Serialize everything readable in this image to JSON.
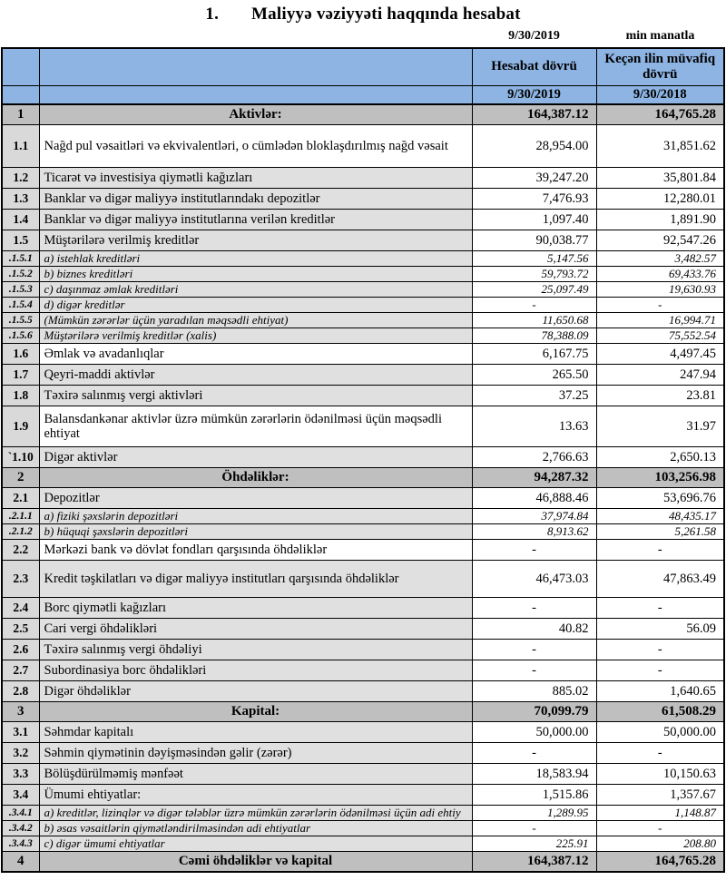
{
  "colors": {
    "header_blue": "#8DB4E2",
    "section_gray": "#BFBFBF",
    "no_col_gray": "#D9D9D9",
    "label_gray": "#E0E0E0"
  },
  "page": {
    "title_number": "1.",
    "title": "Maliyyə vəziyyəti haqqında hesabat",
    "report_date": "9/30/2019",
    "units": "min manatla"
  },
  "table": {
    "header": {
      "col_report": "Hesabat dövrü",
      "col_prior": "Keçən ilin müvafiq dövrü",
      "date_report": "9/30/2019",
      "date_prior": "9/30/2018"
    },
    "rows": [
      {
        "no": "1",
        "label": "Aktivlər:",
        "v1": "164,387.12",
        "v2": "164,765.28",
        "type": "section"
      },
      {
        "no": "1.1",
        "label": "Nağd pul vəsaitləri və  ekvivalentləri, o cümlədən bloklaşdırılmış nağd vəsait",
        "v1": "28,954.00",
        "v2": "31,851.62",
        "type": "item",
        "white": true,
        "tall": 1
      },
      {
        "no": "1.2",
        "label": "Ticarət və investisiya qiymətli kağızları",
        "v1": "39,247.20",
        "v2": "35,801.84",
        "type": "item"
      },
      {
        "no": "1.3",
        "label": "Banklar və digər maliyyə institutlarındakı depozitlər",
        "v1": "7,476.93",
        "v2": "12,280.01",
        "type": "item"
      },
      {
        "no": "1.4",
        "label": "Banklar və digər maliyyə institutlarına verilən kreditlər",
        "v1": "1,097.40",
        "v2": "1,891.90",
        "type": "item"
      },
      {
        "no": "1.5",
        "label": "Müştərilərə verilmiş kreditlər",
        "v1": "90,038.77",
        "v2": "92,547.26",
        "type": "item"
      },
      {
        "no": ".1.5.1",
        "label": "a) istehlak kreditləri",
        "v1": "5,147.56",
        "v2": "3,482.57",
        "type": "sub"
      },
      {
        "no": ".1.5.2",
        "label": "b) biznes kreditləri",
        "v1": "59,793.72",
        "v2": "69,433.76",
        "type": "sub"
      },
      {
        "no": ".1.5.3",
        "label": "c) daşınmaz əmlak kreditləri",
        "v1": "25,097.49",
        "v2": "19,630.93",
        "type": "sub"
      },
      {
        "no": ".1.5.4",
        "label": "d) digər kreditlər",
        "v1": "-",
        "v2": "-",
        "type": "sub"
      },
      {
        "no": ".1.5.5",
        "label": "(Mümkün zərərlər üçün yaradılan məqsədli ehtiyat)",
        "v1": "11,650.68",
        "v2": "16,994.71",
        "type": "sub"
      },
      {
        "no": ".1.5.6",
        "label": "Müştərilərə verilmiş kreditlər (xalis)",
        "v1": "78,388.09",
        "v2": "75,552.54",
        "type": "sub"
      },
      {
        "no": "1.6",
        "label": "Əmlak və avadanlıqlar",
        "v1": "6,167.75",
        "v2": "4,497.45",
        "type": "item",
        "white": true
      },
      {
        "no": "1.7",
        "label": "Qeyri-maddi aktivlər",
        "v1": "265.50",
        "v2": "247.94",
        "type": "item"
      },
      {
        "no": "1.8",
        "label": "Təxirə salınmış vergi aktivləri",
        "v1": "37.25",
        "v2": "23.81",
        "type": "item"
      },
      {
        "no": "1.9",
        "label": "Balansdankənar aktivlər üzrə mümkün zərərlərin ödənilməsi üçün məqsədli ehtiyat",
        "v1": "13.63",
        "v2": "31.97",
        "type": "item",
        "white": true,
        "tall": 2
      },
      {
        "no": "`1.10",
        "label": "Digər aktivlər",
        "v1": "2,766.63",
        "v2": "2,650.13",
        "type": "item"
      },
      {
        "no": "2",
        "label": "Öhdəliklər:",
        "v1": "94,287.32",
        "v2": "103,256.98",
        "type": "section"
      },
      {
        "no": "2.1",
        "label": "Depozitlər",
        "v1": "46,888.46",
        "v2": "53,696.76",
        "type": "item"
      },
      {
        "no": ".2.1.1",
        "label": "a) fiziki şəxslərin depozitləri",
        "v1": "37,974.84",
        "v2": "48,435.17",
        "type": "sub"
      },
      {
        "no": ".2.1.2",
        "label": "b) hüquqi şəxslərin depozitləri",
        "v1": "8,913.62",
        "v2": "5,261.58",
        "type": "sub"
      },
      {
        "no": "2.2",
        "label": "Mərkəzi bank və dövlət fondları qarşısında öhdəliklər",
        "v1": "-",
        "v2": "-",
        "type": "item",
        "white": true
      },
      {
        "no": "2.3",
        "label": "Kredit təşkilatları və digər maliyyə institutları qarşısında öhdəliklər",
        "v1": "46,473.03",
        "v2": "47,863.49",
        "type": "item",
        "tall": 3
      },
      {
        "no": "2.4",
        "label": "Borc qiymətli kağızları",
        "v1": "-",
        "v2": "-",
        "type": "item"
      },
      {
        "no": "2.5",
        "label": "Cari vergi öhdəlikləri",
        "v1": "40.82",
        "v2": "56.09",
        "type": "item"
      },
      {
        "no": "2.6",
        "label": "Təxirə salınmış vergi öhdəliyi",
        "v1": "-",
        "v2": "-",
        "type": "item"
      },
      {
        "no": "2.7",
        "label": "Subordinasiya borc öhdəlikləri",
        "v1": "-",
        "v2": "-",
        "type": "item"
      },
      {
        "no": "2.8",
        "label": "Digər öhdəliklər",
        "v1": "885.02",
        "v2": "1,640.65",
        "type": "item"
      },
      {
        "no": "3",
        "label": "Kapital:",
        "v1": "70,099.79",
        "v2": "61,508.29",
        "type": "section"
      },
      {
        "no": "3.1",
        "label": "Səhmdar kapitalı",
        "v1": "50,000.00",
        "v2": "50,000.00",
        "type": "item"
      },
      {
        "no": "3.2",
        "label": "Səhmin qiymətinin dəyişməsindən gəlir (zərər)",
        "v1": "-",
        "v2": "-",
        "type": "item"
      },
      {
        "no": "3.3",
        "label": "Bölüşdürülməmiş mənfəət",
        "v1": "18,583.94",
        "v2": "10,150.63",
        "type": "item"
      },
      {
        "no": "3.4",
        "label": "Ümumi ehtiyatlar:",
        "v1": "1,515.86",
        "v2": "1,357.67",
        "type": "item"
      },
      {
        "no": ".3.4.1",
        "label": "a) kreditlər, lizinqlər və digər tələblər üzrə mümkün zərərlərin ödənilməsi üçün adi ehtiy",
        "v1": "1,289.95",
        "v2": "1,148.87",
        "type": "sub"
      },
      {
        "no": ".3.4.2",
        "label": "b) əsas vəsaitlərin qiymətləndirilməsindən adi ehtiyatlar",
        "v1": "-",
        "v2": "-",
        "type": "sub"
      },
      {
        "no": ".3.4.3",
        "label": "c) digər ümumi ehtiyatlar",
        "v1": "225.91",
        "v2": "208.80",
        "type": "sub"
      },
      {
        "no": "4",
        "label": "Cəmi öhdəliklər və kapital",
        "v1": "164,387.12",
        "v2": "164,765.28",
        "type": "section"
      }
    ]
  }
}
